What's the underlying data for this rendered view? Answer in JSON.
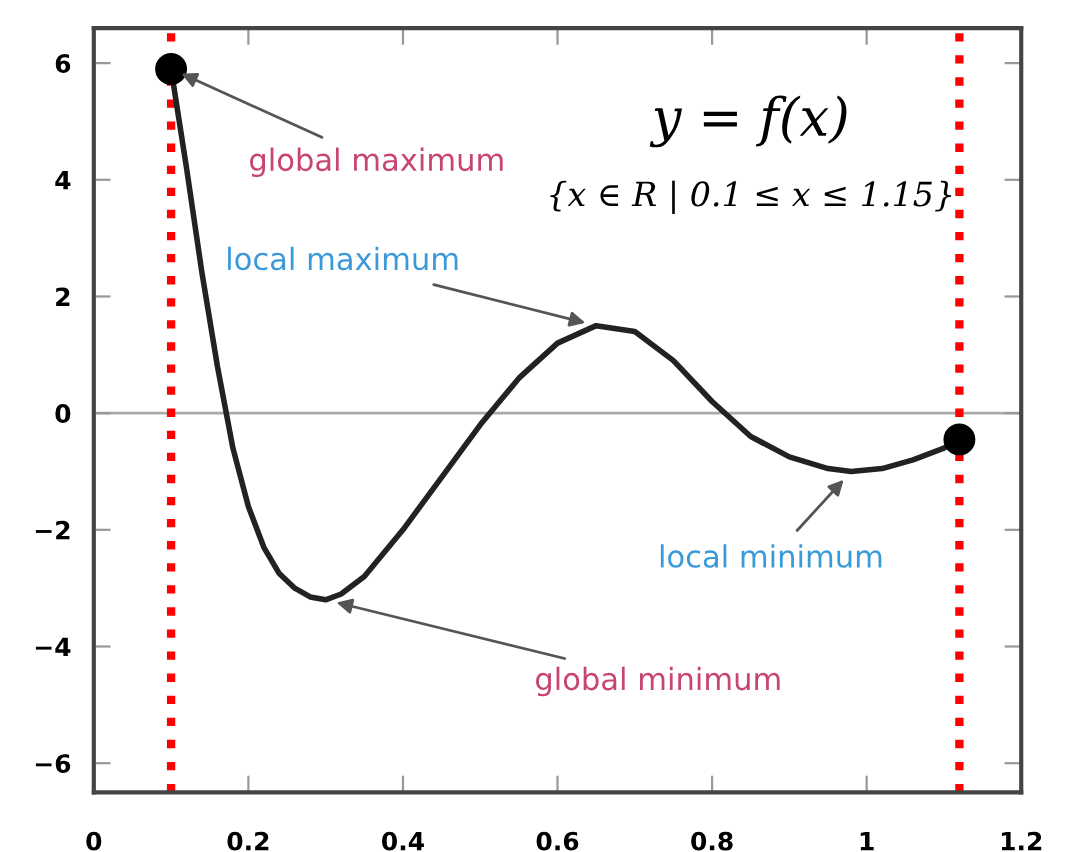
{
  "chart_data": {
    "type": "line",
    "x": [
      0.1,
      0.12,
      0.14,
      0.16,
      0.18,
      0.2,
      0.22,
      0.24,
      0.26,
      0.28,
      0.3,
      0.32,
      0.35,
      0.4,
      0.45,
      0.5,
      0.55,
      0.6,
      0.65,
      0.7,
      0.75,
      0.8,
      0.85,
      0.9,
      0.95,
      0.98,
      1.02,
      1.06,
      1.1,
      1.12
    ],
    "series": [
      {
        "color": "#222222",
        "values": [
          5.9,
          4.2,
          2.4,
          0.8,
          -0.6,
          -1.6,
          -2.3,
          -2.75,
          -3.0,
          -3.15,
          -3.2,
          -3.1,
          -2.8,
          -2.0,
          -1.1,
          -0.2,
          0.6,
          1.2,
          1.5,
          1.4,
          0.9,
          0.2,
          -0.4,
          -0.75,
          -0.95,
          -1.0,
          -0.95,
          -0.8,
          -0.6,
          -0.45
        ]
      },
      {
        "type": "scatter",
        "color": "#000000",
        "marker": "circle",
        "x": [
          0.1,
          1.12
        ],
        "values": [
          5.9,
          -0.45
        ]
      }
    ],
    "xlim": [
      0,
      1.2
    ],
    "ylim": [
      -6.5,
      6.6
    ],
    "xticks": [
      0,
      0.2,
      0.4,
      0.6,
      0.8,
      {
        "value": 1,
        "label": "1"
      },
      1.2
    ],
    "yticks": [
      {
        "value": -6,
        "label": "−6"
      },
      {
        "value": -4,
        "label": "−4"
      },
      {
        "value": -2,
        "label": "−2"
      },
      0,
      2,
      4,
      6
    ],
    "ref_lines": [
      {
        "axis": "y",
        "value": 0,
        "color": "#aaaaaa",
        "line_style": "solid"
      },
      {
        "axis": "x",
        "value": 0.1,
        "color": "#ff0000",
        "line_style": "dotted"
      },
      {
        "axis": "x",
        "value": 1.12,
        "color": "#ff0000",
        "line_style": "dotted"
      }
    ],
    "annotations": [
      {
        "text": "global maximum",
        "x": 0.1,
        "y": 5.9
      },
      {
        "text": "local maximum",
        "x": 0.65,
        "y": 1.5
      },
      {
        "text": "local minimum",
        "x": 0.98,
        "y": -1.0
      },
      {
        "text": "global minimum",
        "x": 0.3,
        "y": -3.2
      },
      "y = f(x)",
      "{x ∈ R | 0.1 ≤ x ≤ 1.15}"
    ],
    "grid": false,
    "legend": false
  }
}
